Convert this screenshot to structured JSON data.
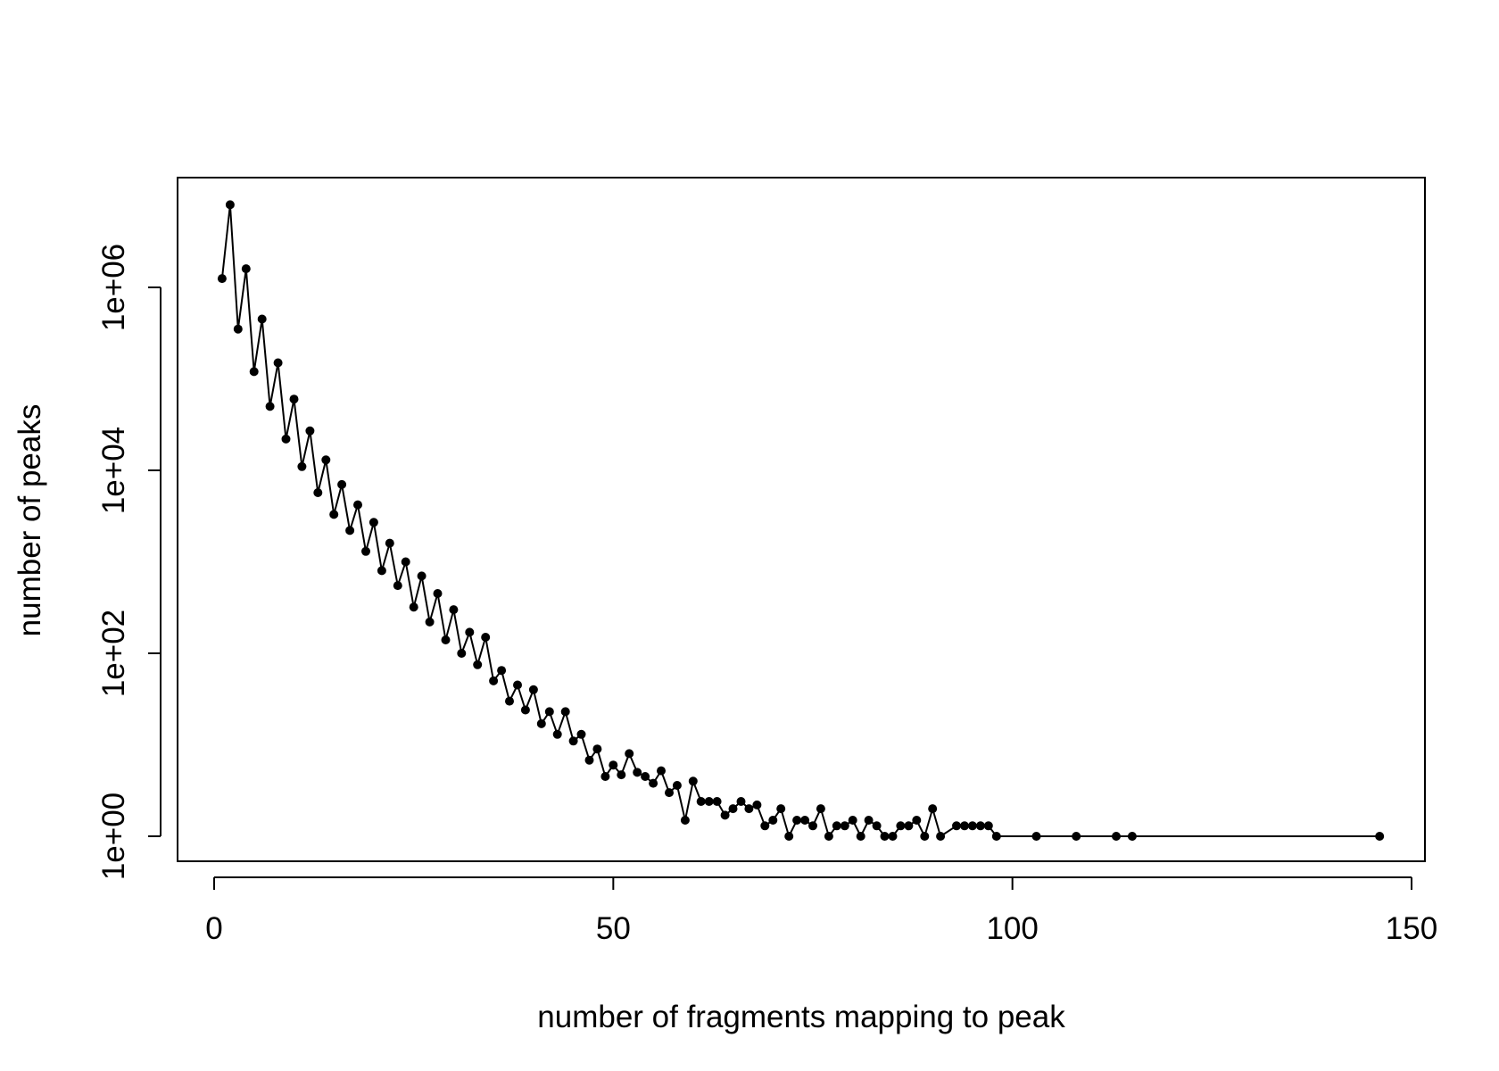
{
  "chart_data": {
    "type": "line",
    "xlabel": "number of fragments mapping to peak",
    "ylabel": "number of peaks",
    "xlim": [
      0,
      150
    ],
    "ylim": [
      1,
      10000000
    ],
    "y_scale": "log10",
    "x_ticks": [
      0,
      50,
      100,
      150
    ],
    "x_tick_labels": [
      "0",
      "50",
      "100",
      "150"
    ],
    "y_ticks": [
      1,
      100,
      10000,
      1000000
    ],
    "y_tick_labels": [
      "1e+00",
      "1e+02",
      "1e+04",
      "1e+06"
    ],
    "grid": false,
    "legend": "none",
    "line_color": "#000000",
    "marker_color": "#000000",
    "series": [
      {
        "x": [
          1,
          2,
          3,
          4,
          5,
          6,
          7,
          8,
          9,
          10,
          11,
          12,
          13,
          14,
          15,
          16,
          17,
          18,
          19,
          20,
          21,
          22,
          23,
          24,
          25,
          26,
          27,
          28,
          29,
          30,
          31,
          32,
          33,
          34,
          35,
          36,
          37,
          38,
          39,
          40,
          41,
          42,
          43,
          44,
          45,
          46,
          47,
          48,
          49,
          50,
          51,
          52,
          53,
          54,
          55,
          56,
          57,
          58,
          59,
          60,
          61,
          62,
          63,
          64,
          65,
          66,
          67,
          68,
          69,
          70,
          71,
          72,
          73,
          74,
          75,
          76,
          77,
          78,
          79,
          80,
          81,
          82,
          83,
          84,
          85,
          86,
          87,
          88,
          89,
          90,
          91,
          93,
          94,
          95,
          96,
          97,
          98,
          103,
          108,
          113,
          115,
          146
        ],
        "y": [
          1250000,
          8000000,
          350000,
          1600000,
          120000,
          450000,
          50000,
          150000,
          22000,
          60000,
          11000,
          27000,
          5700,
          13000,
          3300,
          7000,
          2200,
          4200,
          1300,
          2700,
          800,
          1600,
          550,
          1000,
          320,
          700,
          220,
          450,
          140,
          300,
          100,
          170,
          75,
          150,
          50,
          65,
          30,
          45,
          24,
          40,
          17,
          23,
          13,
          23,
          11,
          13,
          6.8,
          9,
          4.5,
          6,
          4.7,
          8,
          5,
          4.5,
          3.8,
          5.2,
          3,
          3.6,
          1.5,
          4,
          2.4,
          2.4,
          2.4,
          1.7,
          2,
          2.4,
          2,
          2.2,
          1.3,
          1.5,
          2,
          1,
          1.5,
          1.5,
          1.3,
          2,
          1,
          1.3,
          1.3,
          1.5,
          1,
          1.5,
          1.3,
          1,
          1,
          1.3,
          1.3,
          1.5,
          1,
          2,
          1,
          1.3,
          1.3,
          1.3,
          1.3,
          1.3,
          1,
          1,
          1,
          1,
          1,
          1
        ]
      }
    ]
  }
}
